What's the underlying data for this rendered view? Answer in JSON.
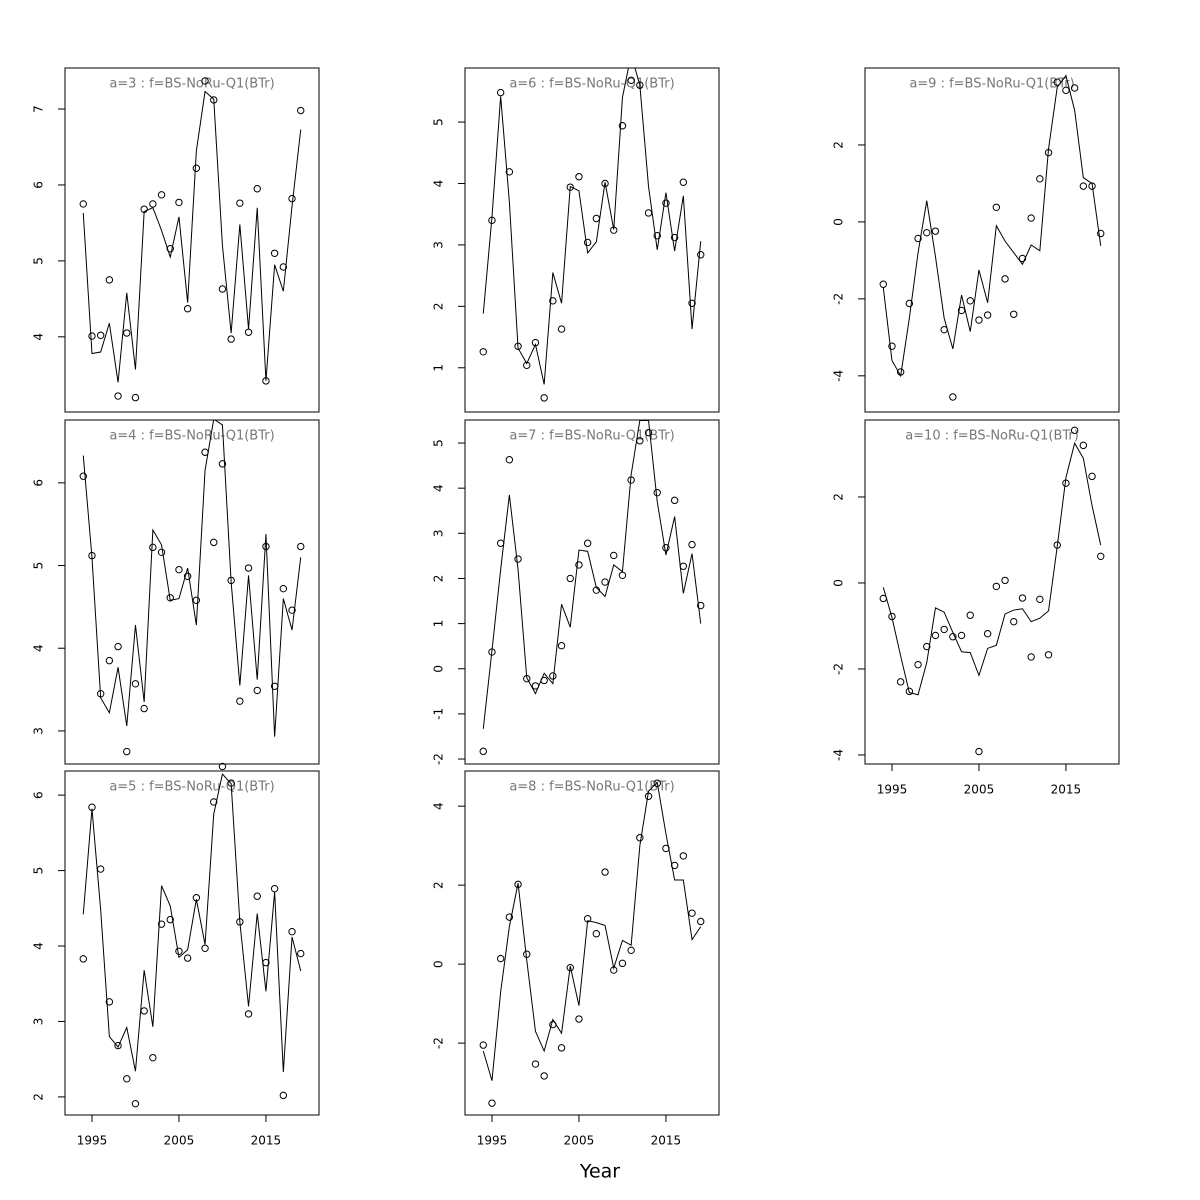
{
  "x_label": "Year",
  "chart_data": [
    {
      "type": "line",
      "title": "a=3 : f=BS-NoRu-Q1(BTr)",
      "x": [
        1994,
        1995,
        1996,
        1997,
        1998,
        1999,
        2000,
        2001,
        2002,
        2003,
        2004,
        2005,
        2006,
        2007,
        2008,
        2009,
        2010,
        2011,
        2012,
        2013,
        2014,
        2015,
        2016,
        2017,
        2018,
        2019
      ],
      "xlim": [
        1991.9,
        2021.1
      ],
      "ylim": [
        3.01,
        7.54
      ],
      "yticks": [
        4,
        5,
        6,
        7
      ],
      "series": [
        {
          "style": "line",
          "color": "#000000",
          "values": [
            5.63,
            3.78,
            3.8,
            4.18,
            3.4,
            4.58,
            3.57,
            5.65,
            5.7,
            5.4,
            5.05,
            5.58,
            4.45,
            6.45,
            7.23,
            7.13,
            5.2,
            4.05,
            5.48,
            4.1,
            5.7,
            3.42,
            4.95,
            4.6,
            5.72,
            6.73
          ]
        },
        {
          "style": "points",
          "color": "#000000",
          "values": [
            5.75,
            4.01,
            4.02,
            4.75,
            3.22,
            4.05,
            3.2,
            5.68,
            5.75,
            5.87,
            5.16,
            5.77,
            4.37,
            6.22,
            7.37,
            7.12,
            4.63,
            3.97,
            5.76,
            4.06,
            5.95,
            3.42,
            5.1,
            4.92,
            5.82,
            6.98
          ]
        }
      ]
    },
    {
      "type": "line",
      "title": "a=4 : f=BS-NoRu-Q1(BTr)",
      "x": [
        1994,
        1995,
        1996,
        1997,
        1998,
        1999,
        2000,
        2001,
        2002,
        2003,
        2004,
        2005,
        2006,
        2007,
        2008,
        2009,
        2010,
        2011,
        2012,
        2013,
        2014,
        2015,
        2016,
        2017,
        2018,
        2019
      ],
      "xlim": [
        1991.9,
        2021.1
      ],
      "ylim": [
        2.6,
        6.76
      ],
      "yticks": [
        3,
        4,
        5,
        6
      ],
      "series": [
        {
          "style": "line",
          "color": "#000000",
          "values": [
            6.33,
            5.1,
            3.4,
            3.22,
            3.77,
            3.06,
            4.28,
            3.35,
            5.43,
            5.25,
            4.58,
            4.6,
            4.97,
            4.28,
            6.15,
            6.77,
            6.7,
            4.8,
            3.55,
            4.88,
            3.62,
            5.38,
            2.93,
            4.6,
            4.22,
            5.1
          ]
        },
        {
          "style": "points",
          "color": "#000000",
          "values": [
            6.08,
            5.12,
            3.45,
            3.85,
            4.02,
            2.75,
            3.57,
            3.27,
            5.22,
            5.16,
            4.61,
            4.95,
            4.87,
            4.58,
            6.37,
            5.28,
            6.23,
            4.82,
            3.36,
            4.97,
            3.49,
            5.23,
            3.54,
            4.72,
            4.46,
            5.23
          ]
        }
      ]
    },
    {
      "type": "line",
      "title": "a=5 : f=BS-NoRu-Q1(BTr)",
      "x": [
        1994,
        1995,
        1996,
        1997,
        1998,
        1999,
        2000,
        2001,
        2002,
        2003,
        2004,
        2005,
        2006,
        2007,
        2008,
        2009,
        2010,
        2011,
        2012,
        2013,
        2014,
        2015,
        2016,
        2017,
        2018,
        2019
      ],
      "xlim": [
        1991.9,
        2021.1
      ],
      "xticks": [
        1995,
        2005,
        2015
      ],
      "ylim": [
        1.76,
        6.32
      ],
      "yticks": [
        2,
        3,
        4,
        5,
        6
      ],
      "series": [
        {
          "style": "line",
          "color": "#000000",
          "values": [
            4.42,
            5.82,
            4.48,
            2.8,
            2.66,
            2.92,
            2.34,
            3.68,
            2.93,
            4.8,
            4.53,
            3.85,
            3.95,
            4.62,
            4.02,
            5.75,
            6.28,
            6.15,
            4.32,
            3.2,
            4.43,
            3.4,
            4.72,
            2.33,
            4.12,
            3.67
          ]
        },
        {
          "style": "points",
          "color": "#000000",
          "values": [
            3.83,
            5.84,
            5.02,
            3.26,
            2.68,
            2.24,
            1.91,
            3.14,
            2.52,
            4.29,
            4.35,
            3.93,
            3.84,
            4.64,
            3.97,
            5.91,
            6.38,
            6.16,
            4.32,
            3.1,
            4.66,
            3.78,
            4.76,
            2.02,
            4.19,
            3.9
          ]
        }
      ]
    },
    {
      "type": "line",
      "title": "a=6 : f=BS-NoRu-Q1(BTr)",
      "x": [
        1994,
        1995,
        1996,
        1997,
        1998,
        1999,
        2000,
        2001,
        2002,
        2003,
        2004,
        2005,
        2006,
        2007,
        2008,
        2009,
        2010,
        2011,
        2012,
        2013,
        2014,
        2015,
        2016,
        2017,
        2018,
        2019
      ],
      "xlim": [
        1991.9,
        2021.1
      ],
      "ylim": [
        0.28,
        5.88
      ],
      "yticks": [
        1,
        2,
        3,
        4,
        5
      ],
      "series": [
        {
          "style": "line",
          "color": "#000000",
          "values": [
            1.88,
            3.45,
            5.42,
            3.7,
            1.32,
            1.07,
            1.38,
            0.73,
            2.55,
            2.05,
            3.95,
            3.88,
            2.87,
            3.05,
            4.02,
            3.25,
            5.4,
            6.1,
            5.6,
            3.95,
            2.92,
            3.85,
            2.9,
            3.8,
            1.63,
            3.06
          ]
        },
        {
          "style": "points",
          "color": "#000000",
          "values": [
            1.26,
            3.4,
            5.48,
            4.19,
            1.35,
            1.04,
            1.41,
            0.51,
            2.09,
            1.63,
            3.94,
            4.11,
            3.04,
            3.43,
            4.0,
            3.24,
            4.94,
            5.68,
            5.6,
            3.52,
            3.15,
            3.68,
            3.12,
            4.02,
            2.05,
            2.84
          ]
        }
      ]
    },
    {
      "type": "line",
      "title": "a=7 : f=BS-NoRu-Q1(BTr)",
      "x": [
        1994,
        1995,
        1996,
        1997,
        1998,
        1999,
        2000,
        2001,
        2002,
        2003,
        2004,
        2005,
        2006,
        2007,
        2008,
        2009,
        2010,
        2011,
        2012,
        2013,
        2014,
        2015,
        2016,
        2017,
        2018,
        2019
      ],
      "xlim": [
        1991.9,
        2021.1
      ],
      "ylim": [
        -2.11,
        5.51
      ],
      "yticks": [
        -2,
        -1,
        0,
        1,
        2,
        3,
        4,
        5
      ],
      "series": [
        {
          "style": "line",
          "color": "#000000",
          "values": [
            -1.33,
            0.4,
            2.2,
            3.85,
            2.2,
            -0.2,
            -0.55,
            -0.1,
            -0.33,
            1.43,
            0.92,
            2.63,
            2.6,
            1.8,
            1.6,
            2.3,
            2.15,
            4.3,
            5.5,
            5.5,
            3.7,
            2.52,
            3.37,
            1.67,
            2.55,
            1.0
          ]
        },
        {
          "style": "points",
          "color": "#000000",
          "values": [
            -1.83,
            0.37,
            2.78,
            4.63,
            2.43,
            -0.22,
            -0.38,
            -0.26,
            -0.16,
            0.51,
            2.0,
            2.3,
            2.78,
            1.74,
            1.92,
            2.51,
            2.07,
            4.18,
            5.05,
            5.23,
            3.9,
            2.68,
            3.73,
            2.27,
            2.75,
            1.4
          ]
        }
      ]
    },
    {
      "type": "line",
      "title": "a=8 : f=BS-NoRu-Q1(BTr)",
      "x": [
        1994,
        1995,
        1996,
        1997,
        1998,
        1999,
        2000,
        2001,
        2002,
        2003,
        2004,
        2005,
        2006,
        2007,
        2008,
        2009,
        2010,
        2011,
        2012,
        2013,
        2014,
        2015,
        2016,
        2017,
        2018,
        2019
      ],
      "xlim": [
        1991.9,
        2021.1
      ],
      "xticks": [
        1995,
        2005,
        2015
      ],
      "ylim": [
        -3.82,
        4.89
      ],
      "yticks": [
        -2,
        0,
        2,
        4
      ],
      "series": [
        {
          "style": "line",
          "color": "#000000",
          "values": [
            -2.2,
            -2.95,
            -0.7,
            0.95,
            2.05,
            0.1,
            -1.7,
            -2.2,
            -1.4,
            -1.75,
            -0.05,
            -1.05,
            1.1,
            1.05,
            0.98,
            -0.1,
            0.6,
            0.48,
            3.0,
            4.38,
            4.6,
            3.3,
            2.13,
            2.13,
            0.62,
            0.95
          ]
        },
        {
          "style": "points",
          "color": "#000000",
          "values": [
            -2.05,
            -3.52,
            0.14,
            1.19,
            2.02,
            0.25,
            -2.53,
            -2.83,
            -1.53,
            -2.12,
            -0.09,
            -1.39,
            1.15,
            0.77,
            2.33,
            -0.15,
            0.02,
            0.35,
            3.2,
            4.25,
            4.58,
            2.93,
            2.5,
            2.74,
            1.29,
            1.08
          ]
        }
      ]
    },
    {
      "type": "line",
      "title": "a=9 : f=BS-NoRu-Q1(BTr)",
      "x": [
        1994,
        1995,
        1996,
        1997,
        1998,
        1999,
        2000,
        2001,
        2002,
        2003,
        2004,
        2005,
        2006,
        2007,
        2008,
        2009,
        2010,
        2011,
        2012,
        2013,
        2014,
        2015,
        2016,
        2017,
        2018,
        2019
      ],
      "xlim": [
        1991.9,
        2021.1
      ],
      "ylim": [
        -4.94,
        4.0
      ],
      "yticks": [
        -4,
        -2,
        0,
        2
      ],
      "series": [
        {
          "style": "line",
          "color": "#000000",
          "values": [
            -1.7,
            -3.6,
            -4.0,
            -2.5,
            -0.8,
            0.55,
            -0.9,
            -2.5,
            -3.3,
            -1.9,
            -2.85,
            -1.25,
            -2.1,
            -0.1,
            -0.5,
            -0.8,
            -1.1,
            -0.6,
            -0.75,
            1.9,
            3.5,
            3.8,
            2.9,
            1.15,
            1.0,
            -0.62
          ]
        },
        {
          "style": "points",
          "color": "#000000",
          "values": [
            -1.62,
            -3.23,
            -3.9,
            -2.12,
            -0.43,
            -0.28,
            -0.24,
            -2.8,
            -4.55,
            -2.3,
            -2.05,
            -2.55,
            -2.42,
            0.38,
            -1.48,
            -2.4,
            -0.95,
            0.1,
            1.12,
            1.8,
            3.63,
            3.42,
            3.48,
            0.93,
            0.93,
            -0.3
          ]
        }
      ]
    },
    {
      "type": "line",
      "title": "a=10 : f=BS-NoRu-Q1(BTr)",
      "x": [
        1994,
        1995,
        1996,
        1997,
        1998,
        1999,
        2000,
        2001,
        2002,
        2003,
        2004,
        2005,
        2006,
        2007,
        2008,
        2009,
        2010,
        2011,
        2012,
        2013,
        2014,
        2015,
        2016,
        2017,
        2018,
        2019
      ],
      "xlim": [
        1991.9,
        2021.1
      ],
      "xticks": [
        1995,
        2005,
        2015
      ],
      "ylim": [
        -4.21,
        3.79
      ],
      "yticks": [
        -4,
        -2,
        0,
        2
      ],
      "series": [
        {
          "style": "line",
          "color": "#000000",
          "values": [
            -0.1,
            -0.8,
            -1.7,
            -2.55,
            -2.6,
            -1.85,
            -0.58,
            -0.68,
            -1.15,
            -1.6,
            -1.62,
            -2.15,
            -1.52,
            -1.45,
            -0.72,
            -0.63,
            -0.6,
            -0.9,
            -0.82,
            -0.65,
            0.85,
            2.45,
            3.25,
            2.9,
            1.8,
            0.88
          ]
        },
        {
          "style": "points",
          "color": "#000000",
          "values": [
            -0.36,
            -0.78,
            -2.3,
            -2.52,
            -1.9,
            -1.48,
            -1.22,
            -1.08,
            -1.25,
            -1.22,
            -0.75,
            -3.92,
            -1.18,
            -0.08,
            0.06,
            -0.9,
            -0.35,
            -1.72,
            -0.38,
            -1.67,
            0.88,
            2.32,
            3.55,
            3.2,
            2.48,
            0.62
          ]
        }
      ]
    }
  ]
}
